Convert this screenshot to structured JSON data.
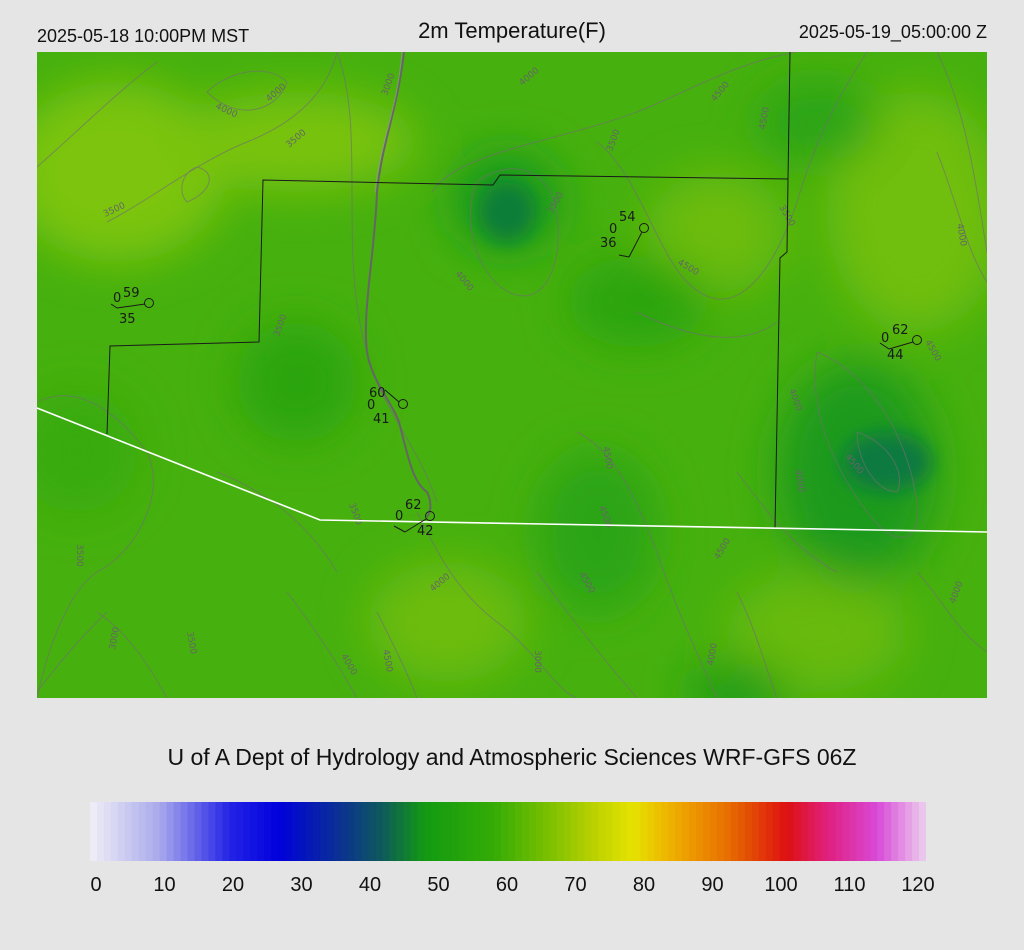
{
  "header": {
    "title": "2m Temperature(F)",
    "local_time": "2025-05-18 10:00PM MST",
    "utc_time": "2025-05-19_05:00:00 Z"
  },
  "credit": "U of A Dept of Hydrology and Atmospheric Sciences WRF-GFS 06Z",
  "colorbar": {
    "min": 0,
    "max": 120,
    "tick_labels": [
      "0",
      "10",
      "20",
      "30",
      "40",
      "50",
      "60",
      "70",
      "80",
      "90",
      "100",
      "110",
      "120"
    ],
    "stops": [
      {
        "value": 0,
        "color": "#f0eef6"
      },
      {
        "value": 10,
        "color": "#a8a8ec"
      },
      {
        "value": 20,
        "color": "#2424e6"
      },
      {
        "value": 27,
        "color": "#0000dd"
      },
      {
        "value": 35,
        "color": "#0a2c9a"
      },
      {
        "value": 42,
        "color": "#0e5a5a"
      },
      {
        "value": 48,
        "color": "#129a12"
      },
      {
        "value": 58,
        "color": "#34ac06"
      },
      {
        "value": 66,
        "color": "#7cc000"
      },
      {
        "value": 72,
        "color": "#b8d000"
      },
      {
        "value": 78,
        "color": "#e6e200"
      },
      {
        "value": 84,
        "color": "#eeaa00"
      },
      {
        "value": 92,
        "color": "#e66a00"
      },
      {
        "value": 100,
        "color": "#dd1010"
      },
      {
        "value": 106,
        "color": "#e02080"
      },
      {
        "value": 113,
        "color": "#d84ad8"
      },
      {
        "value": 120,
        "color": "#ecd0ee"
      }
    ]
  },
  "elevation_labels": [
    "4000",
    "4000",
    "3500",
    "3000",
    "4000",
    "4500",
    "3500",
    "3500",
    "3500",
    "4500",
    "4000",
    "3500",
    "4000",
    "4500",
    "4500",
    "3500",
    "4500",
    "4000",
    "4500",
    "3500",
    "4000",
    "4500",
    "4500",
    "4000",
    "3500",
    "3000",
    "4000",
    "4500",
    "3000",
    "4000",
    "4000",
    "4500",
    "3500"
  ],
  "stations": [
    {
      "temp": "59",
      "wind": "0",
      "dewpoint": "35"
    },
    {
      "temp": "54",
      "wind": "0",
      "dewpoint": "36"
    },
    {
      "temp": "62",
      "wind": "0",
      "dewpoint": "44"
    },
    {
      "temp": "60",
      "wind": "0",
      "dewpoint": "41"
    },
    {
      "temp": "62",
      "wind": "0",
      "dewpoint": "42"
    }
  ]
}
